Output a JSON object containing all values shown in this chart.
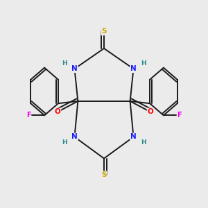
{
  "background_color": "#ebebeb",
  "atom_colors": {
    "C": "#1a1a1a",
    "N": "#1a1aff",
    "O": "#ff0000",
    "S": "#ccaa00",
    "F": "#ee00ee",
    "H": "#2a8a8a"
  },
  "bond_color": "#1a1a1a",
  "bond_lw": 1.4,
  "xlim": [
    -1.8,
    1.8
  ],
  "ylim": [
    -1.7,
    1.7
  ]
}
